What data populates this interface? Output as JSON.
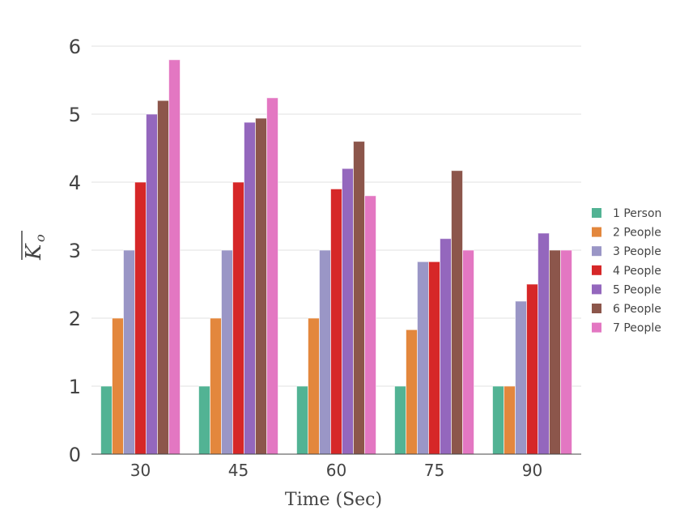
{
  "chart_data": {
    "type": "bar",
    "title": "",
    "xlabel": "Time (Sec)",
    "ylabel": "K_o (mean)",
    "ylim": [
      0,
      6
    ],
    "yticks": [
      "0",
      "1",
      "2",
      "3",
      "4",
      "5",
      "6"
    ],
    "categories": [
      "30",
      "45",
      "60",
      "75",
      "90"
    ],
    "legend_position": "right",
    "grid": true,
    "series": [
      {
        "name": "1 Person",
        "color": "#52b394",
        "values": [
          1,
          1,
          1,
          1,
          1
        ]
      },
      {
        "name": "2 People",
        "color": "#e3873d",
        "values": [
          2,
          2,
          2,
          1.83,
          1
        ]
      },
      {
        "name": "3 People",
        "color": "#9a96c6",
        "values": [
          3,
          3,
          3,
          2.83,
          2.25
        ]
      },
      {
        "name": "4 People",
        "color": "#d62728",
        "values": [
          4,
          4,
          3.9,
          2.83,
          2.5
        ]
      },
      {
        "name": "5 People",
        "color": "#9467bd",
        "values": [
          5,
          4.88,
          4.2,
          3.17,
          3.25
        ]
      },
      {
        "name": "6 People",
        "color": "#8c564b",
        "values": [
          5.2,
          4.94,
          4.6,
          4.17,
          3
        ]
      },
      {
        "name": "7 People",
        "color": "#e377c2",
        "values": [
          5.8,
          5.24,
          3.8,
          3,
          3
        ]
      }
    ]
  }
}
